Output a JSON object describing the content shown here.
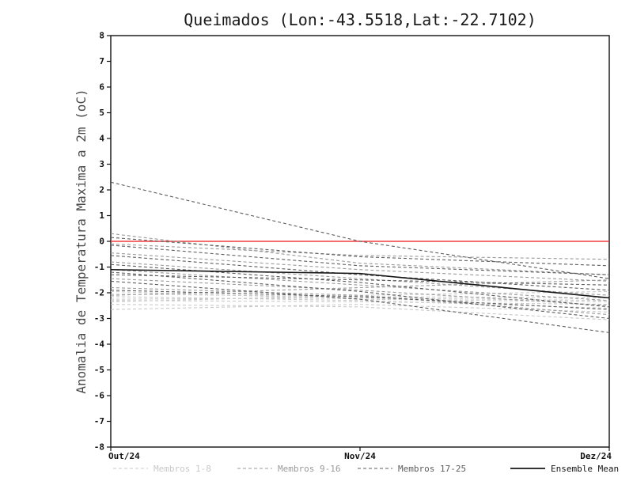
{
  "chart_data": {
    "type": "line",
    "title": "Queimados (Lon:-43.5518,Lat:-22.7102)",
    "ylabel": "Anomalia de Temperatura Maxima a 2m (oC)",
    "x_categories": [
      "Out/24",
      "Nov/24",
      "Dez/24"
    ],
    "ylim": [
      -8,
      8
    ],
    "ytick_step": 1,
    "grid": false,
    "legend_position": "bottom",
    "zero_line": {
      "value": 0,
      "color": "#f03c3c"
    },
    "axis_color": "#111111",
    "series_groups": [
      {
        "name": "Membros 1-8",
        "color": "#c9c9c9",
        "style": "dashed",
        "members": [
          [
            -2.65,
            -2.45,
            -2.75
          ],
          [
            -2.45,
            -2.55,
            -3.05
          ],
          [
            -2.3,
            -2.35,
            -2.45
          ],
          [
            -2.25,
            -2.2,
            -2.3
          ],
          [
            -2.15,
            -2.3,
            -2.6
          ],
          [
            -2.05,
            -2.15,
            -2.2
          ],
          [
            -1.95,
            -2.25,
            -2.35
          ],
          [
            -2.35,
            -2.1,
            -1.95
          ]
        ]
      },
      {
        "name": "Membros 9-16",
        "color": "#9a9a9a",
        "style": "dashed",
        "members": [
          [
            0.3,
            -0.85,
            -1.3
          ],
          [
            -0.1,
            -0.55,
            -0.7
          ],
          [
            -0.45,
            -1.1,
            -1.55
          ],
          [
            -0.8,
            -1.45,
            -2.1
          ],
          [
            -1.1,
            -1.7,
            -2.3
          ],
          [
            -1.45,
            -1.9,
            -2.5
          ],
          [
            -1.8,
            -2.1,
            -2.85
          ],
          [
            -2.1,
            -1.8,
            -1.5
          ]
        ]
      },
      {
        "name": "Membros 17-25",
        "color": "#5d5d5d",
        "style": "dashed",
        "members": [
          [
            2.3,
            0.0,
            -1.45
          ],
          [
            0.15,
            -0.6,
            -0.95
          ],
          [
            -0.15,
            -0.95,
            -1.3
          ],
          [
            -0.55,
            -1.3,
            -1.9
          ],
          [
            -0.9,
            -1.6,
            -2.55
          ],
          [
            -1.2,
            -1.95,
            -3.0
          ],
          [
            -1.55,
            -2.25,
            -3.55
          ],
          [
            -1.9,
            -2.15,
            -2.65
          ],
          [
            -1.3,
            -1.5,
            -1.7
          ]
        ]
      },
      {
        "name": "Ensemble Mean",
        "color": "#141414",
        "style": "solid",
        "members": [
          [
            -1.1,
            -1.25,
            -2.2
          ]
        ]
      }
    ]
  }
}
